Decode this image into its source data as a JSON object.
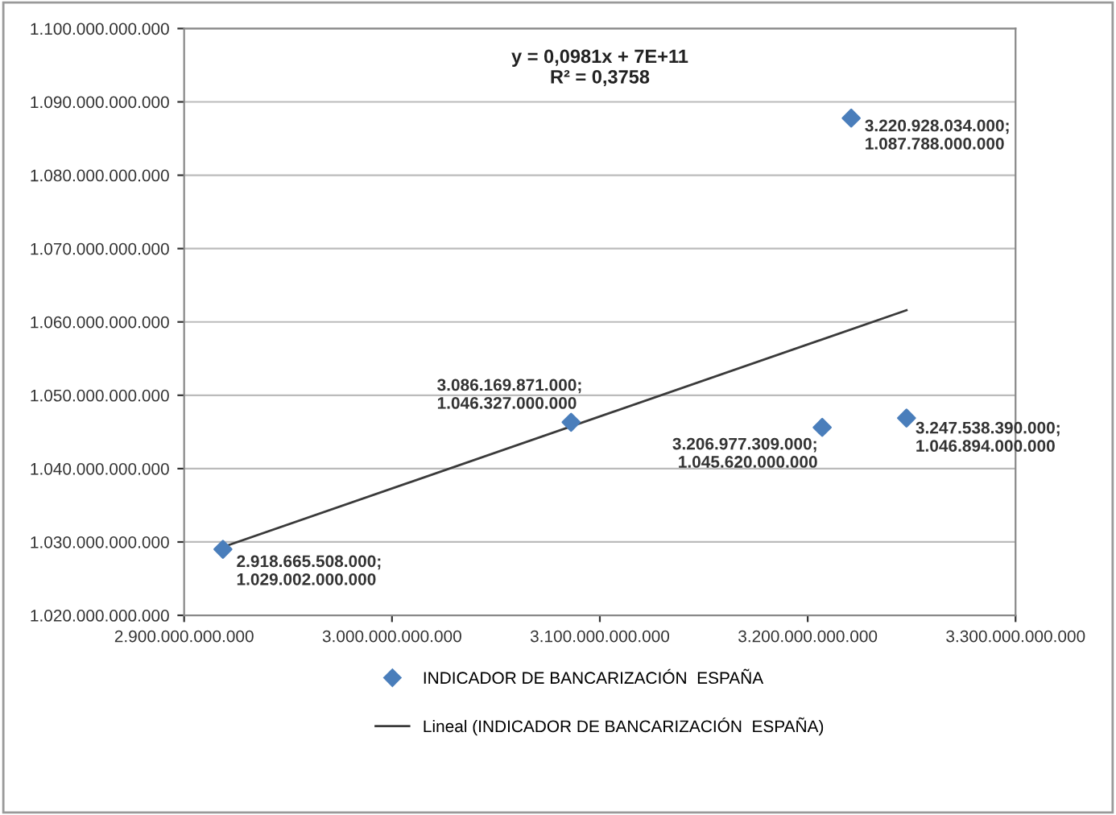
{
  "chart_data": {
    "type": "scatter",
    "x": [
      2918665508000,
      3086169871000,
      3206977309000,
      3220928034000,
      3247538390000
    ],
    "series": [
      {
        "name": "INDICADOR DE BANCARIZACIÓN  ESPAÑA",
        "color": "#4a7ebb",
        "marker": "diamond",
        "values": [
          1029002000000,
          1046327000000,
          1045620000000,
          1087788000000,
          1046894000000
        ],
        "value_labels": [
          "2.918.665.508.000;\n1.029.002.000.000",
          "3.086.169.871.000;\n1.046.327.000.000",
          "3.206.977.309.000;\n1.045.620.000.000",
          "3.220.928.034.000;\n1.087.788.000.000",
          "3.247.538.390.000;\n1.046.894.000.000"
        ]
      },
      {
        "name": "Lineal (INDICADOR DE BANCARIZACIÓN  ESPAÑA)",
        "type": "line",
        "color": "#3a3a3a",
        "line_style": "solid",
        "x": [
          2918665508000,
          3247538390000
        ],
        "values": [
          1029300000000,
          1061600000000
        ]
      }
    ],
    "annotations": [
      "y = 0,0981x + 7E+11",
      "R² = 0,3758"
    ],
    "xlim": [
      2900000000000,
      3300000000000
    ],
    "xticks": [
      {
        "value": 2900000000000,
        "label": "2.900.000.000.000"
      },
      {
        "value": 3000000000000,
        "label": "3.000.000.000.000"
      },
      {
        "value": 3100000000000,
        "label": "3.100.000.000.000"
      },
      {
        "value": 3200000000000,
        "label": "3.200.000.000.000"
      },
      {
        "value": 3300000000000,
        "label": "3.300.000.000.000"
      }
    ],
    "ylim": [
      1020000000000,
      1100000000000
    ],
    "yticks": [
      {
        "value": 1020000000000,
        "label": "1.020.000.000.000"
      },
      {
        "value": 1030000000000,
        "label": "1.030.000.000.000"
      },
      {
        "value": 1040000000000,
        "label": "1.040.000.000.000"
      },
      {
        "value": 1050000000000,
        "label": "1.050.000.000.000"
      },
      {
        "value": 1060000000000,
        "label": "1.060.000.000.000"
      },
      {
        "value": 1070000000000,
        "label": "1.070.000.000.000"
      },
      {
        "value": 1080000000000,
        "label": "1.080.000.000.000"
      },
      {
        "value": 1090000000000,
        "label": "1.090.000.000.000"
      },
      {
        "value": 1100000000000,
        "label": "1.100.000.000.000"
      }
    ],
    "grid": "y",
    "legend": "bottom"
  }
}
